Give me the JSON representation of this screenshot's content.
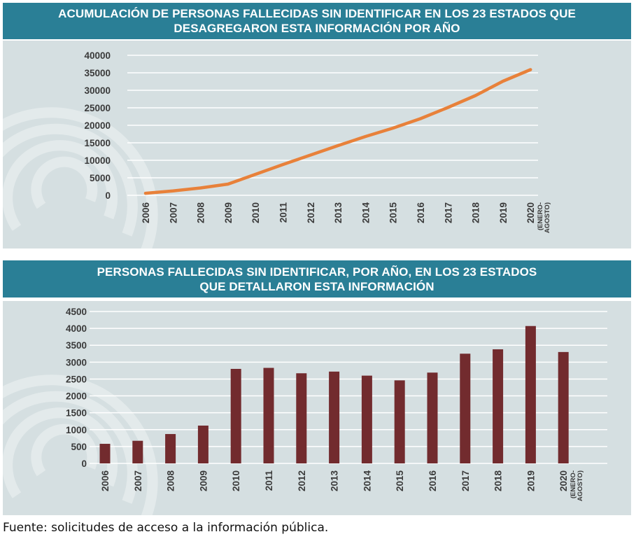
{
  "chart_data": [
    {
      "type": "line",
      "title": "ACUMULACIÓN DE PERSONAS FALLECIDAS SIN IDENTIFICAR EN LOS 23 ESTADOS QUE DESAGREGARON ESTA INFORMACIÓN POR AÑO",
      "title_lines": [
        "ACUMULACIÓN DE PERSONAS FALLECIDAS SIN IDENTIFICAR EN LOS 23 ESTADOS QUE",
        "DESAGREGARON ESTA INFORMACIÓN POR AÑO"
      ],
      "categories": [
        "2006",
        "2007",
        "2008",
        "2009",
        "2010",
        "2011",
        "2012",
        "2013",
        "2014",
        "2015",
        "2016",
        "2017",
        "2018",
        "2019",
        "2020"
      ],
      "category_notes": {
        "2020": [
          "(ENERO-",
          "AGOSTO)"
        ]
      },
      "values": [
        580,
        1250,
        2100,
        3200,
        6000,
        8800,
        11500,
        14200,
        16800,
        19200,
        21900,
        25100,
        28500,
        32600,
        35900
      ],
      "ylim": [
        0,
        40000
      ],
      "yticks": [
        0,
        5000,
        10000,
        15000,
        20000,
        25000,
        30000,
        35000,
        40000
      ],
      "color": "#e8813a",
      "xlabel": "",
      "ylabel": ""
    },
    {
      "type": "bar",
      "title": "PERSONAS FALLECIDAS SIN IDENTIFICAR, POR AÑO, EN LOS 23 ESTADOS QUE DETALLARON ESTA INFORMACIÓN",
      "title_lines": [
        "PERSONAS FALLECIDAS SIN IDENTIFICAR, POR AÑO, EN LOS 23 ESTADOS",
        "QUE DETALLARON ESTA INFORMACIÓN"
      ],
      "categories": [
        "2006",
        "2007",
        "2008",
        "2009",
        "2010",
        "2011",
        "2012",
        "2013",
        "2014",
        "2015",
        "2016",
        "2017",
        "2018",
        "2019",
        "2020"
      ],
      "category_notes": {
        "2020": [
          "(ENERO-",
          "AGOSTO)"
        ]
      },
      "values": [
        580,
        670,
        870,
        1120,
        2800,
        2830,
        2670,
        2720,
        2600,
        2460,
        2690,
        3250,
        3380,
        4070,
        3300
      ],
      "ylim": [
        0,
        4500
      ],
      "yticks": [
        0,
        500,
        1000,
        1500,
        2000,
        2500,
        3000,
        3500,
        4000,
        4500
      ],
      "color": "#722b2e",
      "xlabel": "",
      "ylabel": ""
    }
  ],
  "footer": {
    "source": "Fuente: solicitudes de acceso a la información pública."
  },
  "colors": {
    "banner": "#2a7f96",
    "panel": "#d5dfe1",
    "grid": "#ffffff",
    "text": "#3a3a3a"
  }
}
